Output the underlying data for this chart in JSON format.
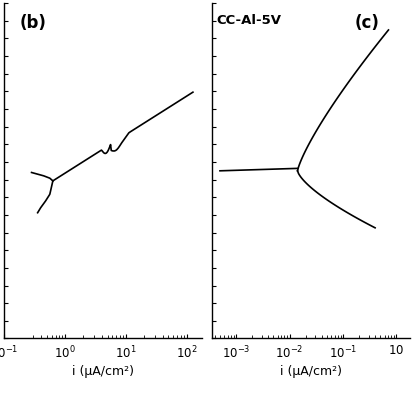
{
  "panel_b_label": "(b)",
  "panel_c_label": "(c)",
  "panel_c_title": "CC-Al-5V",
  "xlabel_b": "i (μA/cm²)",
  "xlabel_c": "i (μA/cm²)",
  "background_color": "#ffffff",
  "line_color": "#000000",
  "figsize": [
    4.14,
    4.14
  ],
  "dpi": 100
}
